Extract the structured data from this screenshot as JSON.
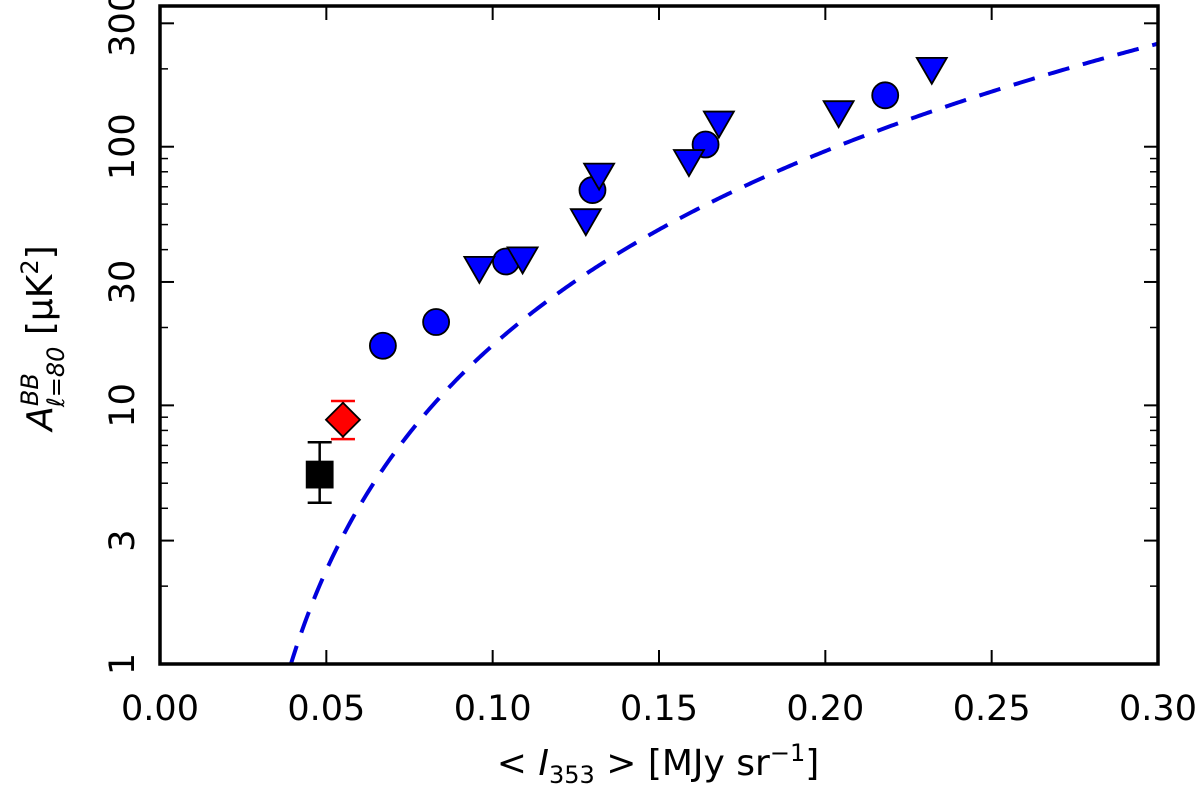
{
  "chart_data": {
    "type": "scatter",
    "title": "",
    "xlabel_parts": [
      "< ",
      "I",
      "353",
      " > [MJy sr",
      "−1",
      "]"
    ],
    "ylabel_parts": [
      "A",
      "BB",
      "ℓ=80",
      " [μK",
      "2",
      "]"
    ],
    "xlim": [
      0.0,
      0.3
    ],
    "ylim": [
      1,
      350
    ],
    "yscale": "log",
    "x_ticks": [
      0.0,
      0.05,
      0.1,
      0.15,
      0.2,
      0.25,
      0.3
    ],
    "x_tick_labels": [
      "0.00",
      "0.05",
      "0.10",
      "0.15",
      "0.20",
      "0.25",
      "0.30"
    ],
    "y_ticks": [
      1,
      3,
      10,
      30,
      100,
      300
    ],
    "y_tick_labels": [
      "1",
      "3",
      "10",
      "30",
      "100",
      "300"
    ],
    "y_minor_ticks": [
      2,
      4,
      5,
      6,
      7,
      8,
      9,
      20,
      40,
      50,
      60,
      70,
      80,
      90,
      200
    ],
    "fit_curve": {
      "style": "dashed",
      "color": "#0000dd",
      "form": "A = a * (x - x0)^b",
      "a": 4000,
      "x0": 0.0163,
      "b": 2.2
    },
    "series": [
      {
        "name": "circles",
        "marker": "circle",
        "color": "#0000ff",
        "points": [
          {
            "x": 0.067,
            "y": 17
          },
          {
            "x": 0.083,
            "y": 21
          },
          {
            "x": 0.104,
            "y": 36
          },
          {
            "x": 0.13,
            "y": 68
          },
          {
            "x": 0.164,
            "y": 102
          },
          {
            "x": 0.218,
            "y": 158
          }
        ]
      },
      {
        "name": "triangles",
        "marker": "triangle-down",
        "color": "#0000ff",
        "points": [
          {
            "x": 0.096,
            "y": 34
          },
          {
            "x": 0.109,
            "y": 37
          },
          {
            "x": 0.128,
            "y": 52
          },
          {
            "x": 0.132,
            "y": 78
          },
          {
            "x": 0.159,
            "y": 88
          },
          {
            "x": 0.168,
            "y": 124
          },
          {
            "x": 0.204,
            "y": 136
          },
          {
            "x": 0.232,
            "y": 200
          }
        ]
      },
      {
        "name": "diamond",
        "marker": "diamond",
        "color": "#ff0000",
        "points": [
          {
            "x": 0.055,
            "y": 8.8,
            "ylo": 7.4,
            "yhi": 10.4
          }
        ]
      },
      {
        "name": "square",
        "marker": "square",
        "color": "#000000",
        "points": [
          {
            "x": 0.048,
            "y": 5.4,
            "ylo": 4.2,
            "yhi": 7.2
          }
        ]
      }
    ]
  }
}
